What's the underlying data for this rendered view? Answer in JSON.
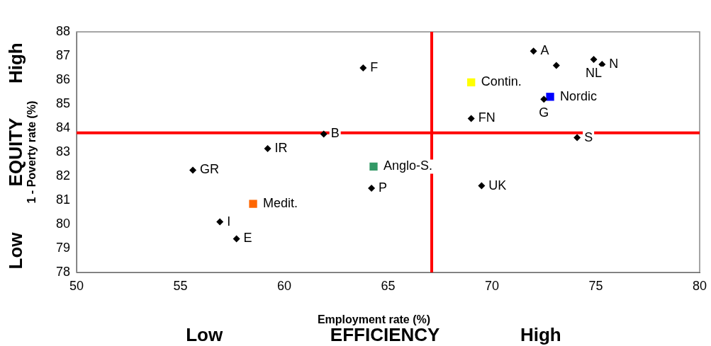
{
  "chart_data": {
    "type": "scatter",
    "xlabel": "Employment rate (%)",
    "ylabel": "1 - Poverty rate (%)",
    "xlim": [
      50,
      80
    ],
    "xticks": [
      50,
      55,
      60,
      65,
      70,
      75,
      80
    ],
    "ylim": [
      78,
      88
    ],
    "yticks": [
      78,
      79,
      80,
      81,
      82,
      83,
      84,
      85,
      86,
      87,
      88
    ],
    "grid": false,
    "legend": false,
    "series": [
      {
        "color": "#000000",
        "marker": "diamond",
        "x": [
          72.0,
          73.1,
          74.9,
          75.3,
          63.8,
          72.5,
          69.0,
          61.9,
          74.1,
          59.2,
          55.6,
          64.2,
          69.5,
          56.9,
          57.7
        ],
        "values": [
          87.2,
          86.6,
          86.85,
          86.65,
          86.5,
          85.2,
          84.4,
          83.75,
          83.6,
          83.15,
          82.25,
          81.5,
          81.6,
          80.1,
          79.4
        ]
      },
      {
        "name": "Contin.",
        "color": "#ffff00",
        "marker": "square",
        "x": [
          69.0
        ],
        "values": [
          85.9
        ]
      },
      {
        "name": "Nordic",
        "color": "#0000ff",
        "marker": "square",
        "x": [
          72.8
        ],
        "values": [
          85.3
        ]
      },
      {
        "name": "Anglo-S.",
        "color": "#339966",
        "marker": "square",
        "x": [
          64.3
        ],
        "values": [
          82.4
        ]
      },
      {
        "name": "Medit.",
        "color": "#ff6600",
        "marker": "square",
        "x": [
          58.5
        ],
        "values": [
          80.85
        ]
      }
    ],
    "ref_lines": [
      {
        "axis": "x",
        "value": 67.1,
        "color": "#ff0000"
      },
      {
        "axis": "y",
        "value": 83.8,
        "color": "#ff0000"
      }
    ],
    "annotations": [
      {
        "text": "A",
        "x": 72.0,
        "y": 87.2
      },
      {
        "text": "NL",
        "x": 74.9,
        "y": 86.85
      },
      {
        "text": "N",
        "x": 75.3,
        "y": 86.65
      },
      {
        "text": "F",
        "x": 63.8,
        "y": 86.5
      },
      {
        "text": "G",
        "x": 72.5,
        "y": 85.2
      },
      {
        "text": "FN",
        "x": 69.0,
        "y": 84.4
      },
      {
        "text": "B",
        "x": 61.9,
        "y": 83.75
      },
      {
        "text": "S",
        "x": 74.1,
        "y": 83.6
      },
      {
        "text": "IR",
        "x": 59.2,
        "y": 83.15
      },
      {
        "text": "GR",
        "x": 55.6,
        "y": 82.25
      },
      {
        "text": "P",
        "x": 64.2,
        "y": 81.5
      },
      {
        "text": "UK",
        "x": 69.5,
        "y": 81.6
      },
      {
        "text": "I",
        "x": 56.9,
        "y": 80.1
      },
      {
        "text": "E",
        "x": 57.7,
        "y": 79.4
      },
      "Low",
      "EFFICIENCY",
      "High",
      "Low",
      "EQUITY",
      "High"
    ]
  }
}
